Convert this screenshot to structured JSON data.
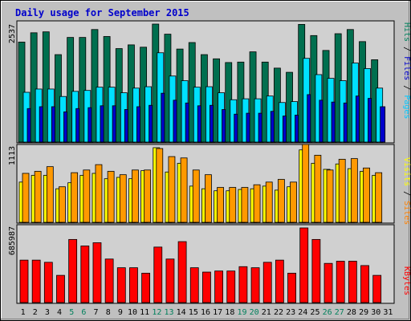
{
  "chart_data": {
    "type": "bar",
    "title": "Daily usage for September 2015",
    "days": [
      "1",
      "2",
      "3",
      "4",
      "5",
      "6",
      "7",
      "8",
      "9",
      "10",
      "11",
      "12",
      "13",
      "14",
      "15",
      "16",
      "17",
      "18",
      "19",
      "20",
      "21",
      "22",
      "23",
      "24",
      "25",
      "26",
      "27",
      "28",
      "29",
      "30",
      "31"
    ],
    "weekend_days": [
      "5",
      "6",
      "12",
      "13",
      "19",
      "20",
      "26",
      "27"
    ],
    "panels": {
      "hits_files_pages": {
        "max_label": "2537",
        "ymax": 2537,
        "axis_label_parts": [
          "Pages",
          "Files",
          "Hits"
        ],
        "series": [
          {
            "name": "Hits",
            "color": "#006f4f",
            "values": [
              2150,
              2350,
              2370,
              1880,
              2250,
              2250,
              2420,
              2270,
              2010,
              2090,
              2040,
              2537,
              2320,
              2000,
              2140,
              1880,
              1790,
              1710,
              1720,
              1940,
              1720,
              1590,
              1500,
              2530,
              2290,
              1970,
              2330,
              2420,
              2160,
              1770,
              null
            ]
          },
          {
            "name": "Files",
            "color": "#00e0ff",
            "values": [
              1070,
              1140,
              1140,
              980,
              1090,
              1110,
              1180,
              1180,
              1060,
              1160,
              1190,
              1920,
              1420,
              1320,
              1180,
              1190,
              1060,
              910,
              930,
              930,
              990,
              850,
              870,
              1800,
              1450,
              1370,
              1320,
              1700,
              1580,
              1160,
              null
            ]
          },
          {
            "name": "Pages",
            "color": "#0000cc",
            "values": [
              720,
              760,
              760,
              650,
              720,
              740,
              780,
              780,
              700,
              760,
              790,
              1050,
              900,
              840,
              780,
              790,
              700,
              600,
              620,
              620,
              660,
              560,
              580,
              1020,
              900,
              860,
              840,
              990,
              940,
              760,
              null
            ]
          }
        ]
      },
      "visits_sites": {
        "max_label": "1113",
        "ymax": 1113,
        "axis_label_parts": [
          "Sites",
          "Visits"
        ],
        "series": [
          {
            "name": "Visits",
            "color": "#ffff00",
            "values": [
              600,
              700,
              700,
              500,
              590,
              700,
              730,
              650,
              670,
              650,
              770,
              1113,
              750,
              880,
              540,
              500,
              470,
              470,
              490,
              500,
              540,
              480,
              530,
              1080,
              880,
              790,
              870,
              800,
              760,
              700,
              null
            ]
          },
          {
            "name": "Sites",
            "color": "#ff9900",
            "values": [
              730,
              760,
              830,
              530,
              740,
              780,
              860,
              760,
              710,
              780,
              780,
              1100,
              980,
              960,
              780,
              710,
              520,
              520,
              520,
              560,
              600,
              640,
              600,
              1170,
              1000,
              780,
              940,
              950,
              810,
              740,
              null
            ]
          }
        ]
      },
      "kbytes": {
        "max_label": "685987",
        "ymax": 685987,
        "axis_label_parts": [
          "KBytes"
        ],
        "series": [
          {
            "name": "KBytes",
            "color": "#ff0000",
            "values": [
              390000,
              390000,
              370000,
              250000,
              580000,
              520000,
              550000,
              400000,
              320000,
              320000,
              270000,
              510000,
              400000,
              560000,
              320000,
              280000,
              290000,
              290000,
              330000,
              320000,
              370000,
              390000,
              270000,
              685987,
              580000,
              360000,
              380000,
              380000,
              340000,
              250000,
              null
            ]
          }
        ]
      }
    }
  }
}
